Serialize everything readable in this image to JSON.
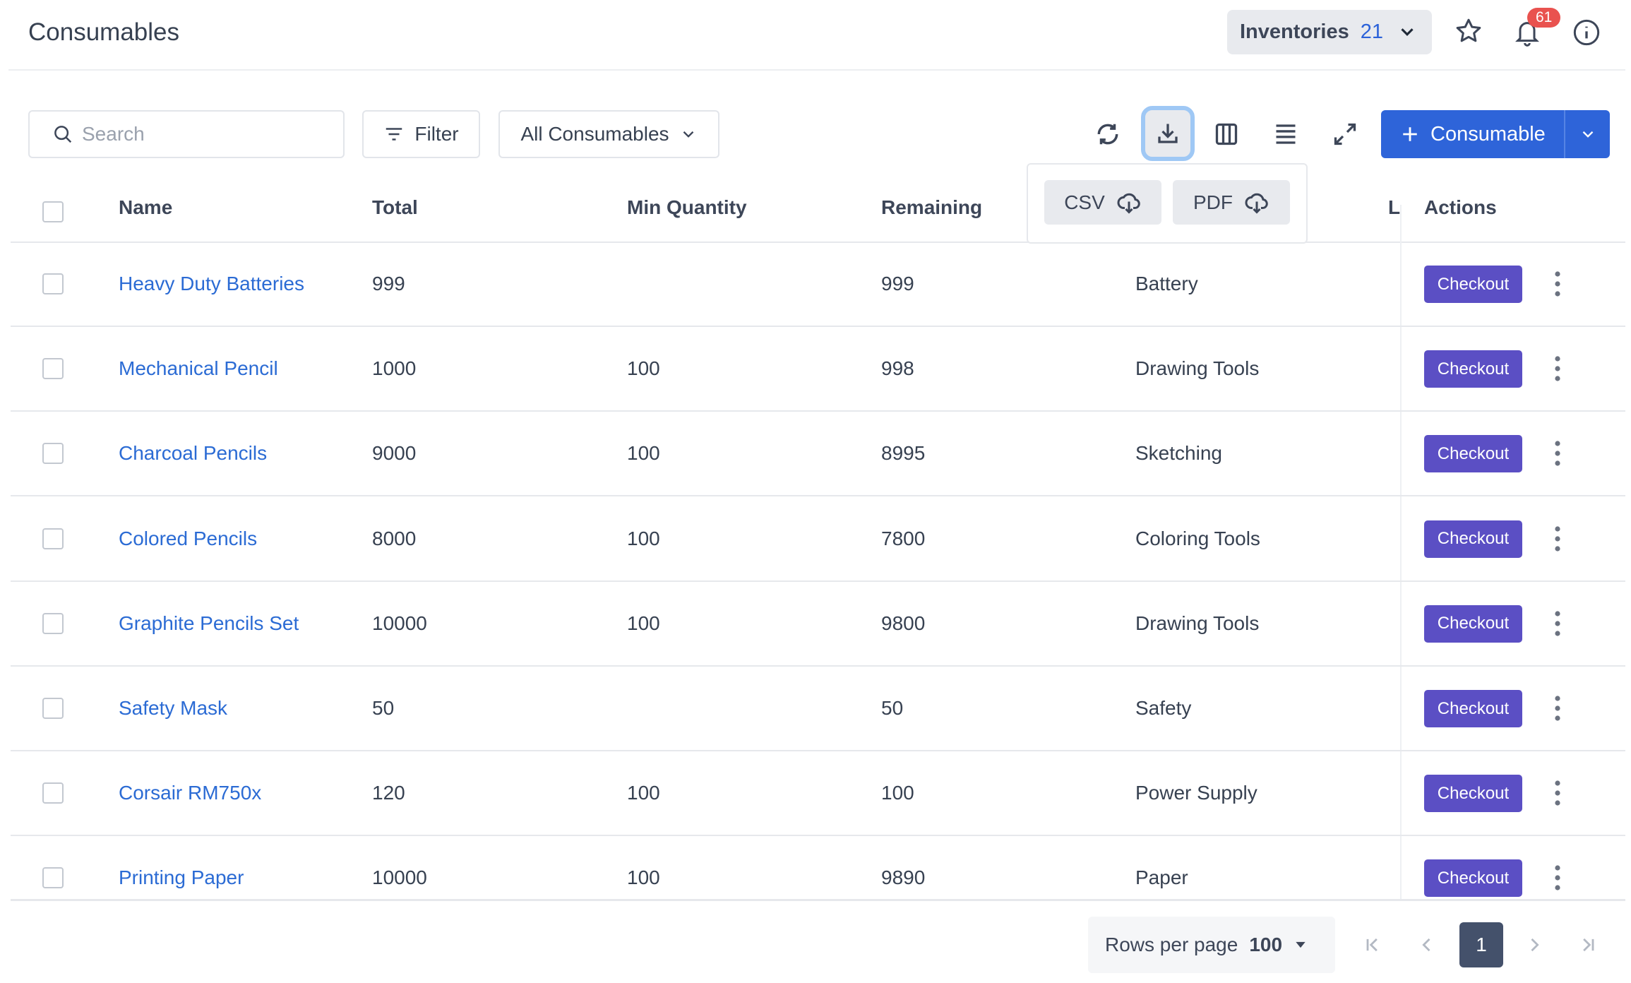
{
  "header": {
    "title": "Consumables",
    "inventories_label": "Inventories",
    "inventories_count": "21",
    "notification_count": "61"
  },
  "toolbar": {
    "search_placeholder": "Search",
    "filter_label": "Filter",
    "view_select": "All Consumables",
    "add_label": "Consumable",
    "export_options": [
      "CSV",
      "PDF"
    ]
  },
  "table": {
    "columns": [
      "Name",
      "Total",
      "Min Quantity",
      "Remaining",
      "",
      "L",
      "Actions"
    ],
    "rows": [
      {
        "name": "Heavy Duty Batteries",
        "total": "999",
        "min": "",
        "remaining": "999",
        "category": "Battery"
      },
      {
        "name": "Mechanical Pencil",
        "total": "1000",
        "min": "100",
        "remaining": "998",
        "category": "Drawing Tools"
      },
      {
        "name": "Charcoal Pencils",
        "total": "9000",
        "min": "100",
        "remaining": "8995",
        "category": "Sketching"
      },
      {
        "name": "Colored Pencils",
        "total": "8000",
        "min": "100",
        "remaining": "7800",
        "category": "Coloring Tools"
      },
      {
        "name": "Graphite Pencils Set",
        "total": "10000",
        "min": "100",
        "remaining": "9800",
        "category": "Drawing Tools"
      },
      {
        "name": "Safety Mask",
        "total": "50",
        "min": "",
        "remaining": "50",
        "category": "Safety"
      },
      {
        "name": "Corsair RM750x",
        "total": "120",
        "min": "100",
        "remaining": "100",
        "category": "Power Supply"
      },
      {
        "name": "Printing Paper",
        "total": "10000",
        "min": "100",
        "remaining": "9890",
        "category": "Paper"
      }
    ],
    "action_label": "Checkout"
  },
  "pagination": {
    "rows_per_page_label": "Rows per page",
    "rows_per_page": "100",
    "current_page": "1"
  },
  "colors": {
    "primary": "#2e64d9",
    "checkout": "#5b4fc4",
    "badge": "#e9524f",
    "link": "#2b6bd4"
  }
}
